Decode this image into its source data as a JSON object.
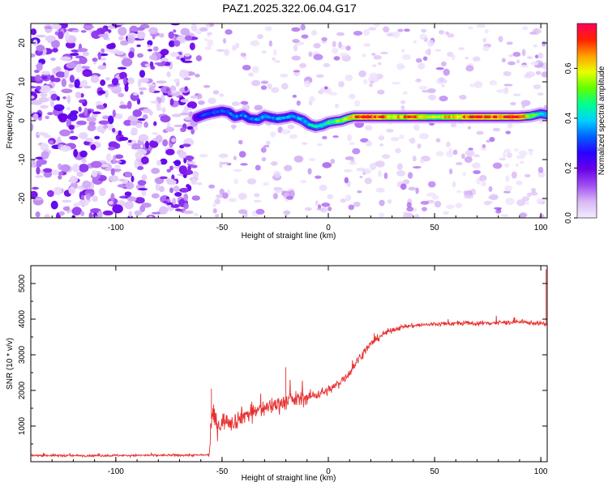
{
  "figure_title": "PAZ1.2025.322.06.04.G17",
  "chart_data": [
    {
      "type": "heatmap",
      "title": "PAZ1.2025.322.06.04.G17",
      "xlabel": "Height of straight line (km)",
      "ylabel": "Frequency (Hz)",
      "xlim": [
        -140,
        103
      ],
      "ylim": [
        -25,
        25
      ],
      "x_ticks": [
        -100,
        -50,
        0,
        50,
        100
      ],
      "y_ticks": [
        -20,
        -10,
        0,
        10,
        20
      ],
      "colorbar": {
        "label": "Normalized spectral amplitude",
        "range": [
          0.0,
          0.78
        ],
        "ticks": [
          0.0,
          0.2,
          0.4,
          0.6
        ],
        "colors": [
          "#f4ecff",
          "#d8b8f5",
          "#a050f0",
          "#6a00e8",
          "#2a00ff",
          "#0060ff",
          "#00d0ff",
          "#00ff90",
          "#60ff00",
          "#e8ff00",
          "#ffa000",
          "#ff2000",
          "#ff0060"
        ]
      },
      "noise": {
        "x_range": [
          -140,
          103
        ],
        "dense_region_x": [
          -140,
          -63
        ],
        "blob_count_dense": 620,
        "blob_count_sparse": 480
      },
      "signal_track": {
        "x": [
          -62,
          -58,
          -55,
          -50,
          -47,
          -44,
          -40,
          -37,
          -33,
          -30,
          -27,
          -24,
          -20,
          -17,
          -15,
          -12,
          -9,
          -6,
          -3,
          0,
          3,
          6,
          9,
          12,
          15,
          20,
          30,
          40,
          50,
          60,
          70,
          80,
          90,
          95,
          100,
          103
        ],
        "frequency": [
          0.8,
          1.6,
          2.0,
          2.5,
          2.2,
          1.0,
          1.5,
          0.5,
          0.3,
          1.2,
          0.8,
          0.5,
          0.8,
          1.2,
          0.8,
          0.2,
          -1.0,
          -1.5,
          -1.2,
          -0.5,
          -0.2,
          0.0,
          0.6,
          1.0,
          1.0,
          1.0,
          1.0,
          1.0,
          1.0,
          1.0,
          1.0,
          1.0,
          1.0,
          1.2,
          1.8,
          1.5
        ],
        "amplitude": [
          0.25,
          0.3,
          0.32,
          0.33,
          0.33,
          0.33,
          0.34,
          0.34,
          0.34,
          0.35,
          0.35,
          0.35,
          0.35,
          0.36,
          0.36,
          0.37,
          0.38,
          0.4,
          0.42,
          0.45,
          0.48,
          0.5,
          0.55,
          0.6,
          0.7,
          0.72,
          0.6,
          0.65,
          0.55,
          0.62,
          0.7,
          0.68,
          0.72,
          0.5,
          0.42,
          0.4
        ]
      }
    },
    {
      "type": "line",
      "title": "",
      "xlabel": "Height of straight line (km)",
      "ylabel": "SNR (10 * v/v)",
      "xlim": [
        -140,
        103
      ],
      "ylim": [
        0,
        5500
      ],
      "x_ticks": [
        -100,
        -50,
        0,
        50,
        100
      ],
      "y_ticks": [
        1000,
        2000,
        3000,
        4000,
        5000
      ],
      "series": [
        {
          "name": "SNR",
          "color": "#e83030",
          "x": [
            -140,
            -120,
            -100,
            -80,
            -60,
            -56,
            -55,
            -54,
            -52,
            -48,
            -45,
            -40,
            -35,
            -30,
            -25,
            -20,
            -15,
            -10,
            -5,
            0,
            5,
            10,
            15,
            20,
            25,
            30,
            35,
            40,
            50,
            60,
            70,
            80,
            90,
            100,
            103
          ],
          "y": [
            180,
            170,
            175,
            180,
            185,
            190,
            1200,
            1300,
            1000,
            1200,
            1100,
            1300,
            1400,
            1500,
            1600,
            1700,
            1750,
            1800,
            1900,
            2000,
            2200,
            2500,
            2950,
            3300,
            3550,
            3700,
            3780,
            3820,
            3860,
            3880,
            3880,
            3900,
            3920,
            3880,
            3850
          ],
          "noise_amplitude": [
            40,
            40,
            40,
            40,
            40,
            40,
            420,
            350,
            350,
            300,
            320,
            300,
            320,
            300,
            300,
            300,
            280,
            240,
            180,
            160,
            160,
            180,
            150,
            130,
            120,
            100,
            80,
            80,
            80,
            80,
            80,
            80,
            80,
            80,
            80
          ],
          "spikes": [
            {
              "x": -55,
              "y": 2050
            },
            {
              "x": -20,
              "y": 2650
            },
            {
              "x": 102.5,
              "y": 5400
            }
          ]
        }
      ]
    }
  ]
}
